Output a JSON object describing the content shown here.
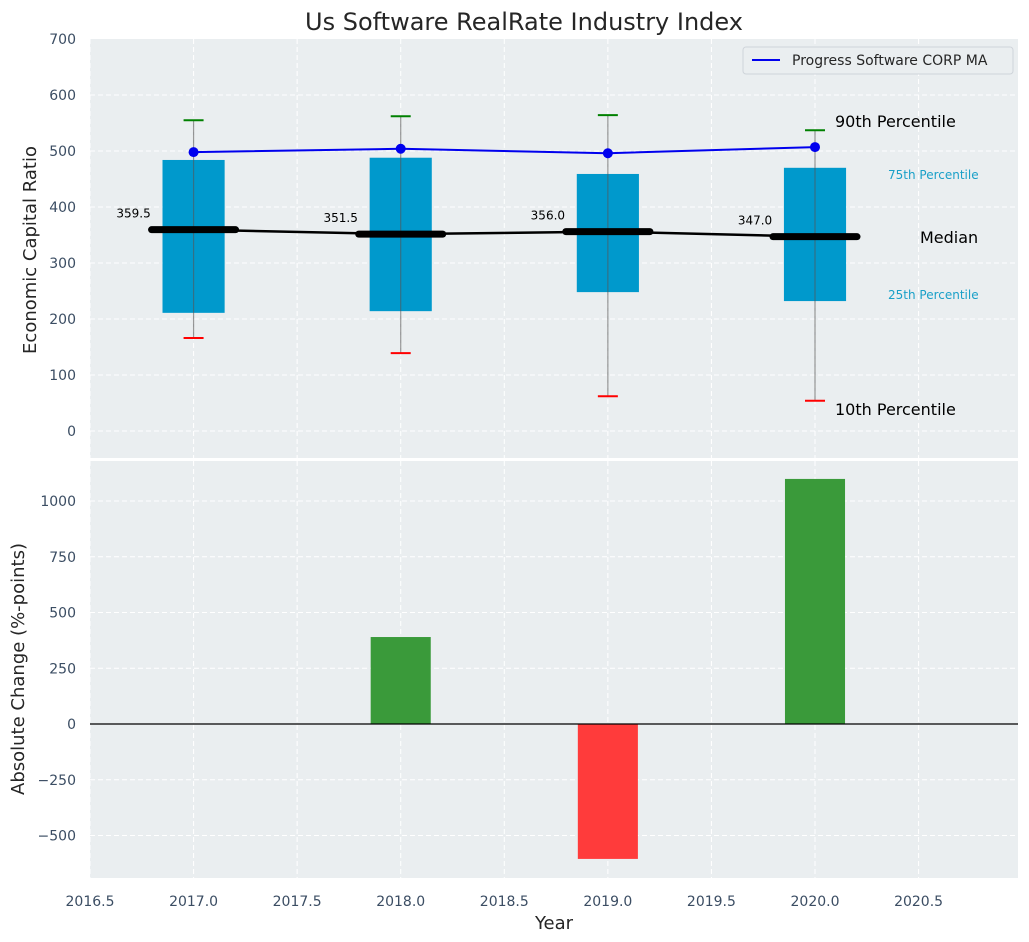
{
  "chart_data": [
    {
      "type": "box",
      "title": "Us Software RealRate Industry Index",
      "xlabel": "",
      "ylabel": "Economic Capital Ratio",
      "ylim": [
        -50,
        700
      ],
      "xlim": [
        2016.5,
        2020.98
      ],
      "yticks": [
        0,
        100,
        200,
        300,
        400,
        500,
        600,
        700
      ],
      "ytick_labels": [
        "0",
        "100",
        "200",
        "300",
        "400",
        "500",
        "600",
        "700"
      ],
      "grid": true,
      "x": [
        2017,
        2018,
        2019,
        2020
      ],
      "p10": [
        166,
        139,
        62,
        54
      ],
      "p25": [
        211,
        214,
        248,
        232
      ],
      "median": [
        359.5,
        351.5,
        356.0,
        347.0
      ],
      "median_labels": [
        "359.5",
        "351.5",
        "356.0",
        "347.0"
      ],
      "p75": [
        484,
        488,
        459,
        470
      ],
      "p90": [
        555,
        562,
        564,
        537
      ],
      "series": [
        {
          "name": "Progress Software CORP MA",
          "values": [
            498,
            504,
            496,
            507
          ],
          "color": "#0000ee"
        }
      ],
      "legend": {
        "position": "top-right",
        "entries": [
          "Progress Software CORP MA"
        ]
      },
      "annotations": {
        "p90": "90th Percentile",
        "p75": "75th Percentile",
        "median": "Median",
        "p25": "25th Percentile",
        "p10": "10th Percentile"
      },
      "colors": {
        "box": "#0099cc",
        "median": "#000000",
        "p90_cap": "#008000",
        "p10_cap": "#ff0000",
        "annotation_small": "#1aa0c8"
      }
    },
    {
      "type": "bar",
      "title": "",
      "xlabel": "Year",
      "ylabel": "Absolute Change (%-points)",
      "ylim": [
        -680,
        1200
      ],
      "xlim": [
        2016.5,
        2020.98
      ],
      "yticks": [
        -500,
        -250,
        0,
        250,
        500,
        750,
        1000
      ],
      "ytick_labels": [
        "−500",
        "−250",
        "0",
        "250",
        "500",
        "750",
        "1000"
      ],
      "xticks": [
        2016.5,
        2017.0,
        2017.5,
        2018.0,
        2018.5,
        2019.0,
        2019.5,
        2020.0,
        2020.5
      ],
      "xtick_labels": [
        "2016.5",
        "2017.0",
        "2017.5",
        "2018.0",
        "2018.5",
        "2019.0",
        "2019.5",
        "2020.0",
        "2020.5"
      ],
      "grid": true,
      "x": [
        2017,
        2018,
        2019,
        2020
      ],
      "values": [
        0,
        390,
        -605,
        1099
      ],
      "colors": {
        "positive": "#3a9a3a",
        "negative": "#ff3b3b"
      }
    }
  ]
}
